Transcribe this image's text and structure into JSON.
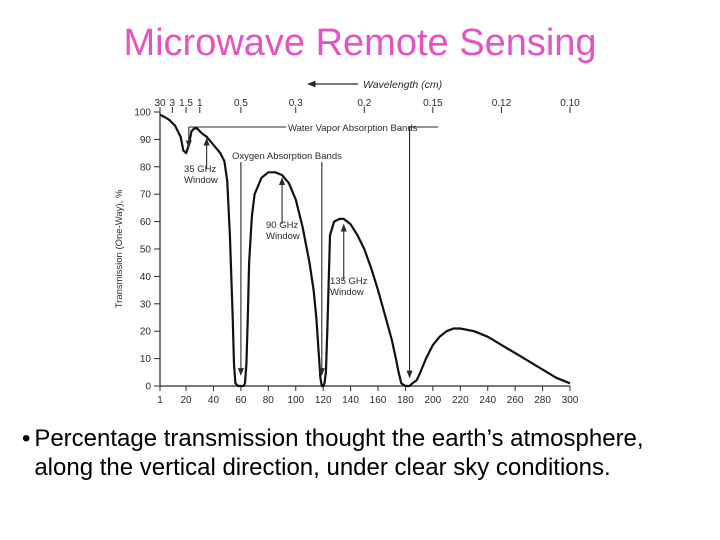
{
  "slide": {
    "title": "Microwave Remote Sensing",
    "title_color": "#e452c4",
    "bullet_marker": "•",
    "bullet": "Percentage transmission thought the earth’s atmosphere, along the vertical direction, under clear sky conditions."
  },
  "chart_data": {
    "type": "line",
    "title": "",
    "ylabel": "Transmission (One-Way), %",
    "xlabel": "",
    "top_axis_label": "Wavelength (cm)",
    "x_ticks": [
      1,
      20,
      40,
      60,
      80,
      100,
      120,
      140,
      160,
      180,
      200,
      220,
      240,
      260,
      280,
      300
    ],
    "y_ticks": [
      0,
      10,
      20,
      30,
      40,
      50,
      60,
      70,
      80,
      90,
      100
    ],
    "xlim": [
      1,
      300
    ],
    "ylim": [
      0,
      100
    ],
    "top_ticks": [
      {
        "label": "30",
        "freq": 1
      },
      {
        "label": "3",
        "freq": 10
      },
      {
        "label": "1.5",
        "freq": 20
      },
      {
        "label": "1",
        "freq": 30
      },
      {
        "label": "0.5",
        "freq": 60
      },
      {
        "label": "0.3",
        "freq": 100
      },
      {
        "label": "0.2",
        "freq": 150
      },
      {
        "label": "0.15",
        "freq": 200
      },
      {
        "label": "0.12",
        "freq": 250
      },
      {
        "label": "0.10",
        "freq": 300
      }
    ],
    "series": [
      {
        "name": "",
        "x": [
          1,
          5,
          8,
          10,
          12,
          14,
          16,
          18,
          20,
          22,
          24,
          26,
          28,
          30,
          32,
          35,
          40,
          45,
          48,
          50,
          52,
          54,
          55,
          56,
          58,
          60,
          62,
          63,
          64,
          65,
          66,
          68,
          70,
          75,
          80,
          85,
          90,
          95,
          100,
          105,
          110,
          113,
          115,
          117,
          118,
          119,
          120,
          121,
          122,
          123,
          125,
          128,
          132,
          135,
          140,
          145,
          150,
          155,
          160,
          165,
          170,
          173,
          175,
          177,
          180,
          183,
          185,
          188,
          190,
          195,
          200,
          205,
          210,
          215,
          220,
          230,
          240,
          250,
          260,
          270,
          280,
          290,
          300
        ],
        "y": [
          99,
          98,
          97,
          96,
          95,
          93,
          91,
          86,
          85,
          88,
          93,
          94,
          94,
          93,
          92,
          91,
          88,
          85,
          82,
          75,
          55,
          25,
          8,
          1,
          0,
          0,
          0,
          1,
          8,
          25,
          45,
          62,
          70,
          76,
          78,
          78,
          77,
          74,
          68,
          58,
          45,
          35,
          25,
          10,
          3,
          0,
          0,
          1,
          5,
          20,
          55,
          60,
          61,
          61,
          59,
          55,
          50,
          43,
          35,
          26,
          17,
          10,
          5,
          1,
          0,
          0,
          1,
          2,
          4,
          10,
          15,
          18,
          20,
          21,
          21,
          20,
          18,
          15,
          12,
          9,
          6,
          3,
          1
        ]
      }
    ],
    "annotations": {
      "water_vapor": "Water Vapor Absorption Bands",
      "oxygen": "Oxygen Absorption Bands",
      "w35": "35 GHz\nWindow",
      "w90": "90 GHz\nWindow",
      "w135": "135 GHz\nWindow"
    },
    "grid": false,
    "legend": "none"
  }
}
